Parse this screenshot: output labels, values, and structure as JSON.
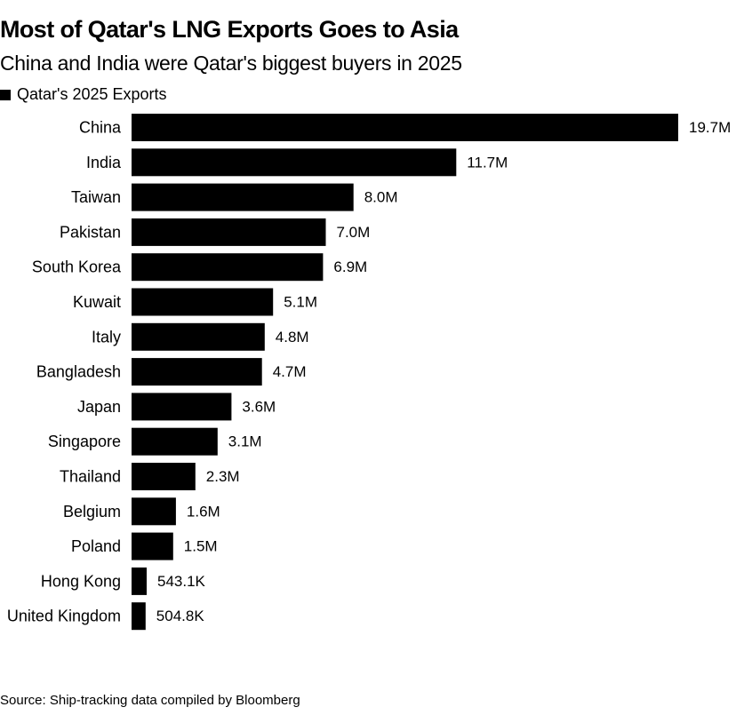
{
  "colors": {
    "bar": "#000000",
    "background": "#ffffff",
    "text": "#000000"
  },
  "chart_data": {
    "type": "bar",
    "orientation": "horizontal",
    "title": "Most of Qatar's LNG Exports Goes to Asia",
    "subtitle": "China and India were Qatar's biggest buyers in 2025",
    "legend": [
      "Qatar's 2025 Exports"
    ],
    "legend_position": "top-left",
    "source": "Source: Ship-tracking data compiled by Bloomberg",
    "xlabel": "",
    "ylabel": "",
    "grid": false,
    "xlim": [
      0,
      19.7
    ],
    "categories": [
      "China",
      "India",
      "Taiwan",
      "Pakistan",
      "South Korea",
      "Kuwait",
      "Italy",
      "Bangladesh",
      "Japan",
      "Singapore",
      "Thailand",
      "Belgium",
      "Poland",
      "Hong Kong",
      "United Kingdom"
    ],
    "values": [
      19.7,
      11.7,
      8.0,
      7.0,
      6.9,
      5.1,
      4.8,
      4.7,
      3.6,
      3.1,
      2.3,
      1.6,
      1.5,
      0.5431,
      0.5048
    ],
    "value_labels": [
      "19.7M",
      "11.7M",
      "8.0M",
      "7.0M",
      "6.9M",
      "5.1M",
      "4.8M",
      "4.7M",
      "3.6M",
      "3.1M",
      "2.3M",
      "1.6M",
      "1.5M",
      "543.1K",
      "504.8K"
    ]
  }
}
